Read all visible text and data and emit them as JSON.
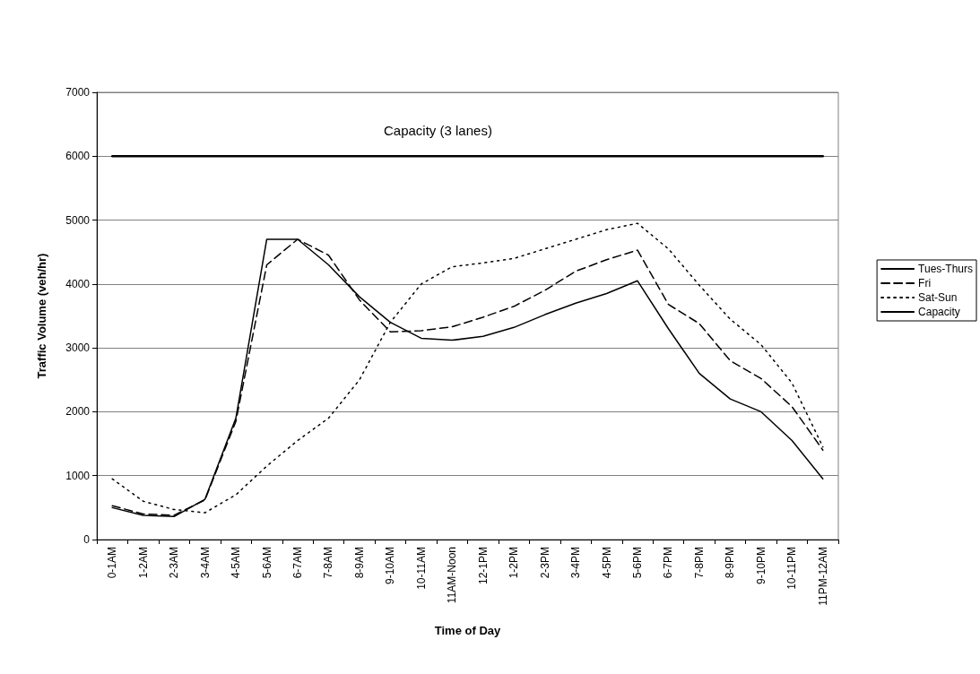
{
  "chart_data": {
    "type": "line",
    "xlabel": "Time of Day",
    "ylabel": "Traffic Volume (veh/hr)",
    "categories": [
      "0-1AM",
      "1-2AM",
      "2-3AM",
      "3-4AM",
      "4-5AM",
      "5-6AM",
      "6-7AM",
      "7-8AM",
      "8-9AM",
      "9-10AM",
      "10-11AM",
      "11AM-Noon",
      "12-1PM",
      "1-2PM",
      "2-3PM",
      "3-4PM",
      "4-5PM",
      "5-6PM",
      "6-7PM",
      "7-8PM",
      "8-9PM",
      "9-10PM",
      "10-11PM",
      "11PM-12AM"
    ],
    "series": [
      {
        "name": "Tues-Thurs",
        "color": "#000000",
        "line_style": "solid",
        "values": [
          500,
          380,
          360,
          630,
          1900,
          4700,
          4700,
          4300,
          3800,
          3400,
          3150,
          3120,
          3180,
          3320,
          3520,
          3700,
          3850,
          4050,
          3300,
          2600,
          2200,
          2000,
          1550,
          950
        ]
      },
      {
        "name": "Fri",
        "color": "#000000",
        "line_style": "dashed",
        "values": [
          530,
          400,
          380,
          620,
          1850,
          4300,
          4700,
          4450,
          3750,
          3250,
          3270,
          3330,
          3480,
          3650,
          3900,
          4200,
          4380,
          4530,
          3680,
          3380,
          2800,
          2520,
          2080,
          1400
        ]
      },
      {
        "name": "Sat-Sun",
        "color": "#000000",
        "line_style": "dotted",
        "values": [
          950,
          600,
          470,
          420,
          700,
          1150,
          1550,
          1900,
          2500,
          3400,
          4000,
          4270,
          4330,
          4400,
          4550,
          4700,
          4850,
          4950,
          4550,
          3980,
          3450,
          3050,
          2450,
          1450
        ]
      },
      {
        "name": "Capacity",
        "color": "#000000",
        "line_style": "solid",
        "values": [
          6000,
          6000,
          6000,
          6000,
          6000,
          6000,
          6000,
          6000,
          6000,
          6000,
          6000,
          6000,
          6000,
          6000,
          6000,
          6000,
          6000,
          6000,
          6000,
          6000,
          6000,
          6000,
          6000,
          6000
        ]
      }
    ],
    "annotations": [
      "Capacity (3 lanes)"
    ],
    "ylim": [
      0,
      7000
    ],
    "yticks": [
      0,
      1000,
      2000,
      3000,
      4000,
      5000,
      6000,
      7000
    ],
    "grid": "y",
    "legend": "right",
    "marker": "none"
  }
}
